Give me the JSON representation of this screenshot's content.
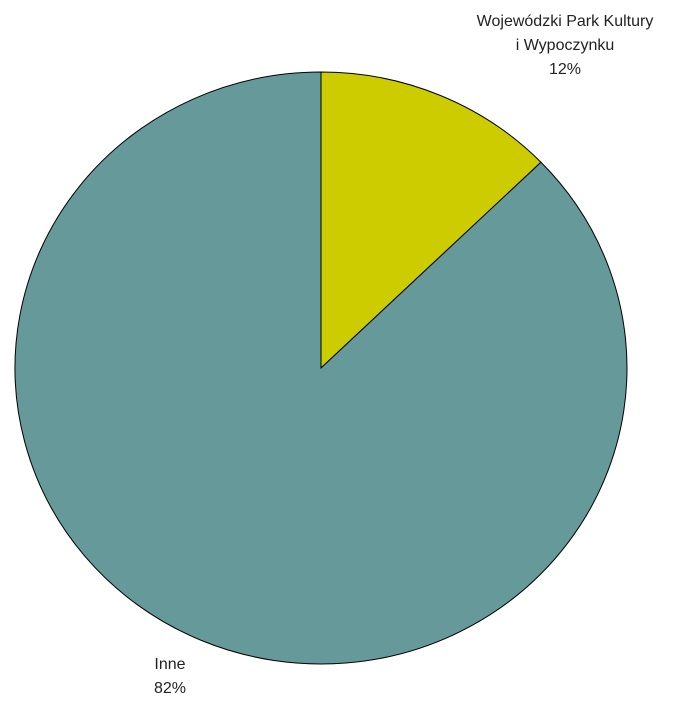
{
  "chart_data": {
    "type": "pie",
    "categories": [
      "Wojewódzki Park Kultury\ni Wypoczynku",
      "Inne"
    ],
    "values": [
      12,
      82
    ],
    "value_labels": [
      "12%",
      "82%"
    ],
    "colors": [
      "#cccc00",
      "#669999"
    ]
  }
}
